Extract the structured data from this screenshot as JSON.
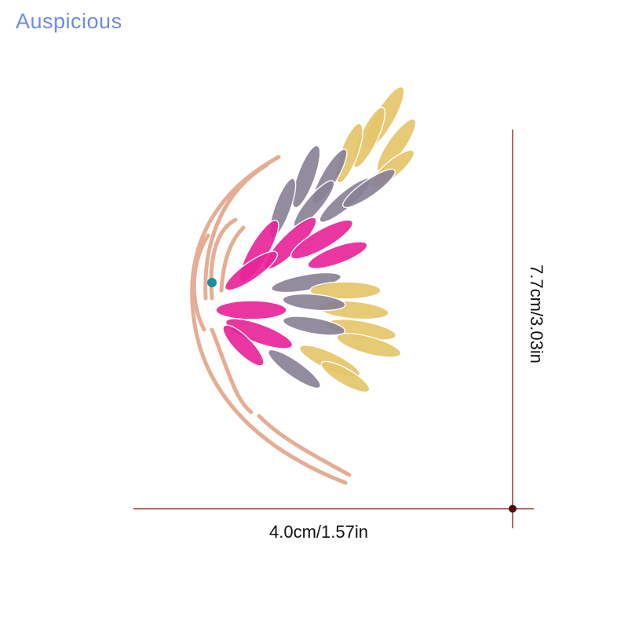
{
  "brand": "Auspicious",
  "dimensions": {
    "width_label": "4.0cm/1.57in",
    "height_label": "7.7cm/3.03in"
  },
  "colors": {
    "brand": "#6f8be8",
    "dimension_line": "#b06a6a",
    "gold_crystal": "#e6c66a",
    "grey_crystal": "#8a8296",
    "pink_crystal": "#e8259a",
    "rose_gold": "#e8b39a"
  }
}
